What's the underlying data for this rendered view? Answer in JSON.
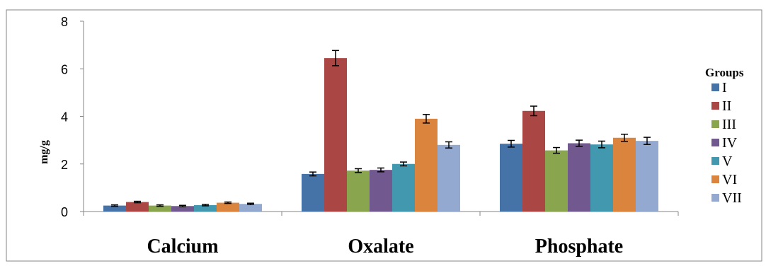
{
  "chart_data": {
    "type": "bar",
    "title": "",
    "xlabel": "",
    "ylabel": "mg/g",
    "ylim": [
      0,
      8
    ],
    "yticks": [
      0,
      2,
      4,
      6,
      8
    ],
    "grid": false,
    "legend_title": "Groups",
    "legend_position": "right",
    "categories": [
      "Calcium",
      "Oxalate",
      "Phosphate"
    ],
    "series": [
      {
        "name": "I",
        "color": "#4572A7",
        "values": [
          0.25,
          1.58,
          2.85
        ],
        "errors": [
          0.03,
          0.08,
          0.14
        ]
      },
      {
        "name": "II",
        "color": "#AA4643",
        "values": [
          0.4,
          6.45,
          4.23
        ],
        "errors": [
          0.03,
          0.32,
          0.2
        ]
      },
      {
        "name": "III",
        "color": "#89A54E",
        "values": [
          0.25,
          1.72,
          2.57
        ],
        "errors": [
          0.03,
          0.08,
          0.12
        ]
      },
      {
        "name": "IV",
        "color": "#71588F",
        "values": [
          0.23,
          1.75,
          2.87
        ],
        "errors": [
          0.03,
          0.08,
          0.13
        ]
      },
      {
        "name": "V",
        "color": "#4198AF",
        "values": [
          0.27,
          2.0,
          2.82
        ],
        "errors": [
          0.03,
          0.08,
          0.14
        ]
      },
      {
        "name": "VI",
        "color": "#DB843D",
        "values": [
          0.37,
          3.9,
          3.1
        ],
        "errors": [
          0.03,
          0.18,
          0.15
        ]
      },
      {
        "name": "VII",
        "color": "#93A9CF",
        "values": [
          0.32,
          2.8,
          2.97
        ],
        "errors": [
          0.03,
          0.13,
          0.15
        ]
      }
    ]
  }
}
